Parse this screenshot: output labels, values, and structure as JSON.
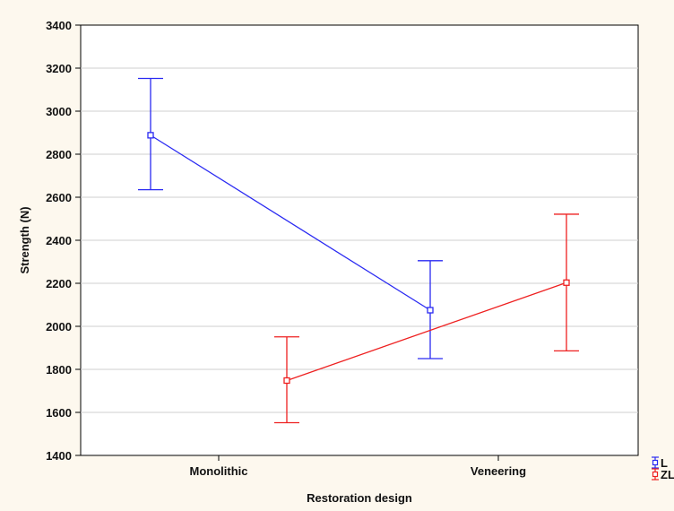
{
  "chart_data": {
    "type": "line",
    "title": "",
    "xlabel": "Restoration design",
    "ylabel": "Strength (N)",
    "categories": [
      "Monolithic",
      "Veneering"
    ],
    "ylim": [
      1400,
      3400
    ],
    "yticks": [
      1400,
      1600,
      1800,
      2000,
      2200,
      2400,
      2600,
      2800,
      3000,
      3200,
      3400
    ],
    "grid": true,
    "legend_position": "bottom-right",
    "series": [
      {
        "name": "L",
        "color": "#2a2af2",
        "values": [
          2888,
          2075
        ],
        "lower": [
          2635,
          1850
        ],
        "upper": [
          3152,
          2305
        ]
      },
      {
        "name": "ZL",
        "color": "#ee2020",
        "values": [
          1748,
          2203
        ],
        "lower": [
          1552,
          1886
        ],
        "upper": [
          1951,
          2521
        ]
      }
    ]
  }
}
